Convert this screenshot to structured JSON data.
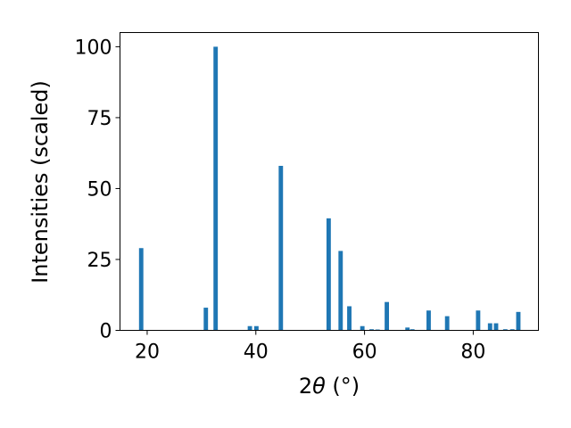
{
  "chart_data": {
    "type": "bar",
    "title": "",
    "xlabel_prefix": "2",
    "xlabel_theta": "θ",
    "xlabel_unit": " (°)",
    "ylabel": "Intensities (scaled)",
    "xlim": [
      15,
      92
    ],
    "ylim": [
      0,
      105
    ],
    "xticks": [
      20,
      40,
      60,
      80
    ],
    "yticks": [
      0,
      25,
      50,
      75,
      100
    ],
    "bar_color": "#1f77b4",
    "bar_width": 0.8,
    "grid": false,
    "legend": "none",
    "x": [
      18.9,
      30.8,
      32.6,
      38.9,
      40.1,
      44.6,
      53.4,
      55.6,
      57.2,
      59.6,
      61.3,
      62.4,
      64.1,
      67.9,
      68.8,
      71.8,
      75.2,
      80.9,
      83.1,
      84.2,
      85.9,
      87.2,
      88.3
    ],
    "values": [
      29,
      8,
      100,
      1.5,
      1.5,
      58,
      39.5,
      28,
      8.5,
      1.5,
      0.4,
      0.3,
      10,
      1,
      0.4,
      7,
      5,
      7,
      2.5,
      2.5,
      0.4,
      0.4,
      6.5
    ]
  }
}
